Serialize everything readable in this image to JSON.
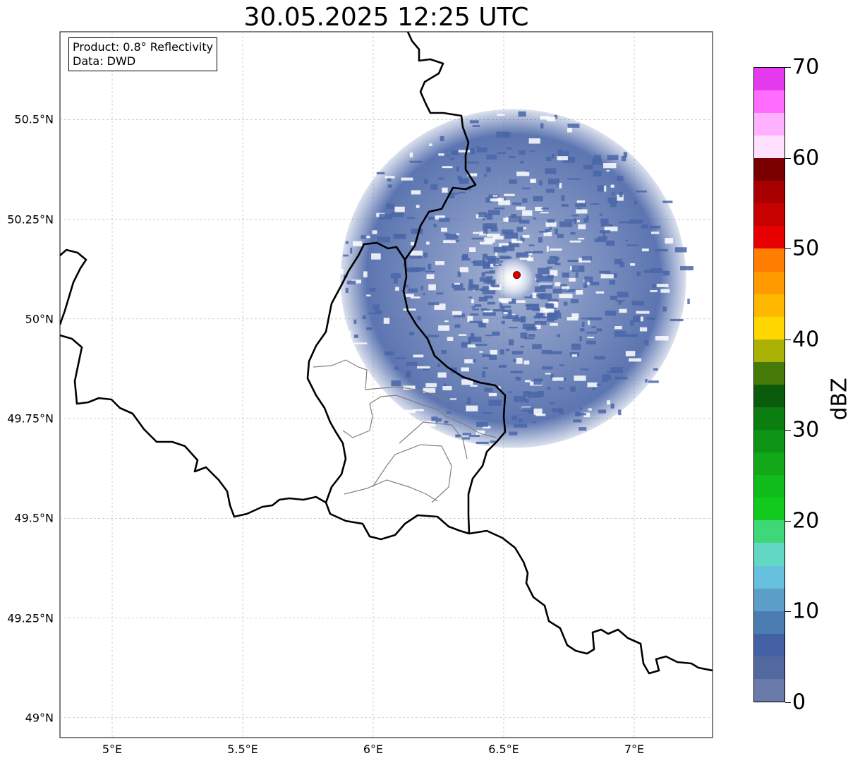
{
  "title": "30.05.2025 12:25 UTC",
  "info": {
    "product": "Product: 0.8° Reflectivity",
    "data": "Data: DWD"
  },
  "map": {
    "lon_range": [
      4.8,
      7.3
    ],
    "lat_range": [
      48.95,
      50.72
    ],
    "lon_ticks": [
      {
        "value": 5.0,
        "label": "5°E"
      },
      {
        "value": 5.5,
        "label": "5.5°E"
      },
      {
        "value": 6.0,
        "label": "6°E"
      },
      {
        "value": 6.5,
        "label": "6.5°E"
      },
      {
        "value": 7.0,
        "label": "7°E"
      }
    ],
    "lat_ticks": [
      {
        "value": 49.0,
        "label": "49°N"
      },
      {
        "value": 49.25,
        "label": "49.25°N"
      },
      {
        "value": 49.5,
        "label": "49.5°N"
      },
      {
        "value": 49.75,
        "label": "49.75°N"
      },
      {
        "value": 50.0,
        "label": "50°N"
      },
      {
        "value": 50.25,
        "label": "50.25°N"
      },
      {
        "value": 50.5,
        "label": "50.5°N"
      }
    ],
    "grid": true,
    "radar_site": {
      "lon": 6.55,
      "lat": 50.11
    },
    "radar_range_km": 100,
    "echo_color": "#4a66a8"
  },
  "colorbar": {
    "label": "dBZ",
    "min": 0,
    "max": 70,
    "tick_labels": [
      "0",
      "10",
      "20",
      "30",
      "40",
      "50",
      "60",
      "70"
    ],
    "colors": [
      "#6a7aaa",
      "#5468a0",
      "#4461a6",
      "#4a7cb2",
      "#5b9ec8",
      "#66c0de",
      "#62d8c4",
      "#3ed878",
      "#12ca1c",
      "#10bc1c",
      "#12a81a",
      "#0e9414",
      "#0c7e10",
      "#0a5c0c",
      "#457a08",
      "#aab104",
      "#ffd700",
      "#ffb800",
      "#ff9a00",
      "#ff7d00",
      "#e80000",
      "#c70000",
      "#a80000",
      "#7a0000",
      "#ffe0ff",
      "#ffb0ff",
      "#ff6cff",
      "#e63aef"
    ]
  }
}
